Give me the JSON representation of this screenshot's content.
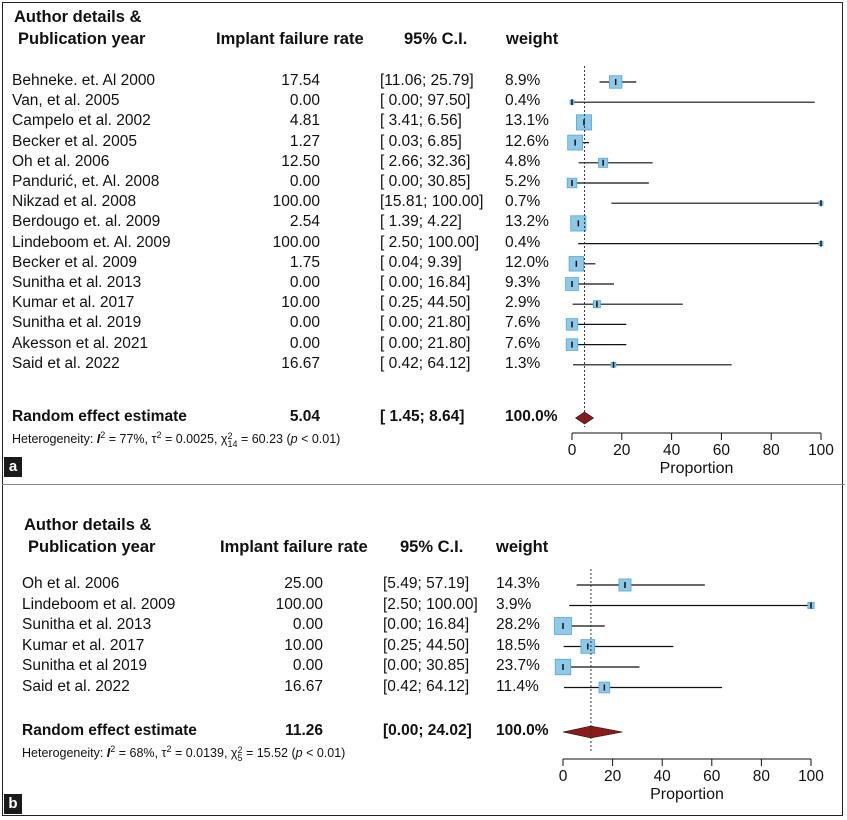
{
  "chart_data": [
    {
      "type": "forest",
      "panel_label": "a",
      "headers": {
        "author": "Author details &",
        "year": "Publication year",
        "rate": "Implant failure rate",
        "ci": "95% C.I.",
        "weight": "weight"
      },
      "studies": [
        {
          "author": "Behneke. et. Al 2000",
          "rate": "17.54",
          "ci": "[11.06; 25.79]",
          "weight": "8.9%",
          "est": 17.54,
          "lo": 11.06,
          "hi": 25.79,
          "w": 8.9
        },
        {
          "author": "Van, et al. 2005",
          "rate": "0.00",
          "ci": "[ 0.00; 97.50]",
          "weight": "0.4%",
          "est": 0.0,
          "lo": 0.0,
          "hi": 97.5,
          "w": 0.4
        },
        {
          "author": "Campelo et al. 2002",
          "rate": "4.81",
          "ci": "[ 3.41; 6.56]",
          "weight": "13.1%",
          "est": 4.81,
          "lo": 3.41,
          "hi": 6.56,
          "w": 13.1
        },
        {
          "author": "Becker et al. 2005",
          "rate": "1.27",
          "ci": "[ 0.03; 6.85]",
          "weight": "12.6%",
          "est": 1.27,
          "lo": 0.03,
          "hi": 6.85,
          "w": 12.6
        },
        {
          "author": "Oh et al. 2006",
          "rate": "12.50",
          "ci": "[ 2.66; 32.36]",
          "weight": "4.8%",
          "est": 12.5,
          "lo": 2.66,
          "hi": 32.36,
          "w": 4.8
        },
        {
          "author": "Pandurić, et. Al. 2008",
          "rate": "0.00",
          "ci": "[ 0.00; 30.85]",
          "weight": "5.2%",
          "est": 0.0,
          "lo": 0.0,
          "hi": 30.85,
          "w": 5.2
        },
        {
          "author": "Nikzad et al. 2008",
          "rate": "100.00",
          "ci": "[15.81; 100.00]",
          "weight": "0.7%",
          "est": 100.0,
          "lo": 15.81,
          "hi": 100.0,
          "w": 0.7
        },
        {
          "author": "Berdougo et. al. 2009",
          "rate": "2.54",
          "ci": "[ 1.39; 4.22]",
          "weight": "13.2%",
          "est": 2.54,
          "lo": 1.39,
          "hi": 4.22,
          "w": 13.2
        },
        {
          "author": "Lindeboom et. Al. 2009",
          "rate": "100.00",
          "ci": "[ 2.50; 100.00]",
          "weight": "0.4%",
          "est": 100.0,
          "lo": 2.5,
          "hi": 100.0,
          "w": 0.4
        },
        {
          "author": "Becker et al. 2009",
          "rate": "1.75",
          "ci": "[ 0.04; 9.39]",
          "weight": "12.0%",
          "est": 1.75,
          "lo": 0.04,
          "hi": 9.39,
          "w": 12.0
        },
        {
          "author": "Sunitha et al. 2013",
          "rate": "0.00",
          "ci": "[ 0.00; 16.84]",
          "weight": "9.3%",
          "est": 0.0,
          "lo": 0.0,
          "hi": 16.84,
          "w": 9.3
        },
        {
          "author": "Kumar et al. 2017",
          "rate": "10.00",
          "ci": "[ 0.25; 44.50]",
          "weight": "2.9%",
          "est": 10.0,
          "lo": 0.25,
          "hi": 44.5,
          "w": 2.9
        },
        {
          "author": "Sunitha et al. 2019",
          "rate": "0.00",
          "ci": "[ 0.00; 21.80]",
          "weight": "7.6%",
          "est": 0.0,
          "lo": 0.0,
          "hi": 21.8,
          "w": 7.6
        },
        {
          "author": "Akesson et al. 2021",
          "rate": "0.00",
          "ci": "[ 0.00; 21.80]",
          "weight": "7.6%",
          "est": 0.0,
          "lo": 0.0,
          "hi": 21.8,
          "w": 7.6
        },
        {
          "author": "Said et al. 2022",
          "rate": "16.67",
          "ci": "[ 0.42; 64.12]",
          "weight": "1.3%",
          "est": 16.67,
          "lo": 0.42,
          "hi": 64.12,
          "w": 1.3
        }
      ],
      "summary": {
        "label": "Random effect estimate",
        "rate": "5.04",
        "ci": "[ 1.45; 8.64]",
        "weight": "100.0%",
        "est": 5.04,
        "lo": 1.45,
        "hi": 8.64
      },
      "heterogeneity": {
        "prefix": "Heterogeneity: ",
        "i2": "I",
        "i2_val": " = 77%, ",
        "tau": "τ",
        "tau_val": " = 0.0025, ",
        "chi": "χ",
        "chi_df": "14",
        "chi_val": " = 60.23 (",
        "p": "p",
        "p_val": " < 0.01)"
      },
      "xaxis": {
        "label": "Proportion",
        "ticks": [
          0,
          20,
          40,
          60,
          80,
          100
        ],
        "range": [
          0,
          100
        ]
      }
    },
    {
      "type": "forest",
      "panel_label": "b",
      "headers": {
        "author": "Author details &",
        "year": "Publication year",
        "rate": "Implant failure rate",
        "ci": "95% C.I.",
        "weight": "weight"
      },
      "studies": [
        {
          "author": "Oh et al. 2006",
          "rate": "25.00",
          "ci": "[5.49; 57.19]",
          "weight": "14.3%",
          "est": 25.0,
          "lo": 5.49,
          "hi": 57.19,
          "w": 14.3
        },
        {
          "author": "Lindeboom et al. 2009",
          "rate": "100.00",
          "ci": "[2.50; 100.00]",
          "weight": "3.9%",
          "est": 100.0,
          "lo": 2.5,
          "hi": 100.0,
          "w": 3.9
        },
        {
          "author": "Sunitha et al. 2013",
          "rate": "0.00",
          "ci": "[0.00; 16.84]",
          "weight": "28.2%",
          "est": 0.0,
          "lo": 0.0,
          "hi": 16.84,
          "w": 28.2
        },
        {
          "author": "Kumar et al. 2017",
          "rate": "10.00",
          "ci": "[0.25; 44.50]",
          "weight": "18.5%",
          "est": 10.0,
          "lo": 0.25,
          "hi": 44.5,
          "w": 18.5
        },
        {
          "author": "Sunitha et al 2019",
          "rate": "0.00",
          "ci": "[0.00; 30.85]",
          "weight": "23.7%",
          "est": 0.0,
          "lo": 0.0,
          "hi": 30.85,
          "w": 23.7
        },
        {
          "author": "Said et al. 2022",
          "rate": "16.67",
          "ci": "[0.42; 64.12]",
          "weight": "11.4%",
          "est": 16.67,
          "lo": 0.42,
          "hi": 64.12,
          "w": 11.4
        }
      ],
      "summary": {
        "label": "Random effect estimate",
        "rate": "11.26",
        "ci": "[0.00; 24.02]",
        "weight": "100.0%",
        "est": 11.26,
        "lo": 0.0,
        "hi": 24.02
      },
      "heterogeneity": {
        "prefix": "Heterogeneity: ",
        "i2": "I",
        "i2_val": " = 68%, ",
        "tau": "τ",
        "tau_val": " = 0.0139, ",
        "chi": "χ",
        "chi_df": "5",
        "chi_val": " = 15.52 (",
        "p": "p",
        "p_val": " < 0.01)"
      },
      "xaxis": {
        "label": "Proportion",
        "ticks": [
          0,
          20,
          40,
          60,
          80,
          100
        ],
        "range": [
          0,
          100
        ]
      }
    }
  ],
  "colors": {
    "box_fill": "#8ec9e8",
    "box_stroke": "#5aa7d3",
    "diamond": "#8b1a1a",
    "line": "#111111",
    "ref_line": "#333333"
  }
}
